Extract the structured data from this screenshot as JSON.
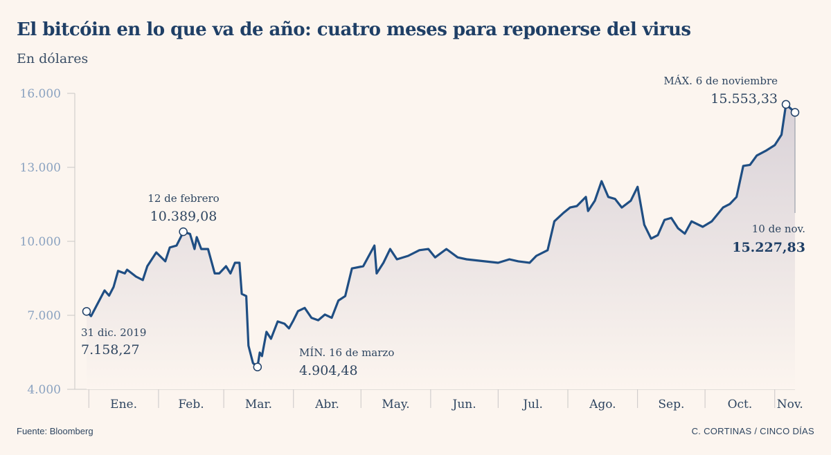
{
  "header": {
    "title": "El bitcóin en lo que va de año: cuatro meses para reponerse del virus",
    "subtitle": "En dólares"
  },
  "footer": {
    "source": "Fuente: Bloomberg",
    "credit": "C. CORTINAS / CINCO DÍAS"
  },
  "colors": {
    "line": "#1f4e83",
    "fill_top": "#d9d2d8",
    "background": "#fcf5ef",
    "axis_text": "#8aa2c0"
  },
  "chart_data": {
    "type": "area",
    "title": "El bitcóin en lo que va de año: cuatro meses para reponerse del virus",
    "ylabel": "En dólares",
    "ylim": [
      4000,
      16000
    ],
    "yticks": [
      {
        "value": 4000,
        "label": "4.000"
      },
      {
        "value": 7000,
        "label": "7.000"
      },
      {
        "value": 10000,
        "label": "10.000"
      },
      {
        "value": 13000,
        "label": "13.000"
      },
      {
        "value": 16000,
        "label": "16.000"
      }
    ],
    "xlim": [
      "2019-12-31",
      "2020-11-10"
    ],
    "months": [
      {
        "start": "2020-01-01",
        "label": "Ene."
      },
      {
        "start": "2020-02-01",
        "label": "Feb."
      },
      {
        "start": "2020-03-01",
        "label": "Mar."
      },
      {
        "start": "2020-04-01",
        "label": "Abr."
      },
      {
        "start": "2020-05-01",
        "label": "May."
      },
      {
        "start": "2020-06-01",
        "label": "Jun."
      },
      {
        "start": "2020-07-01",
        "label": "Jul."
      },
      {
        "start": "2020-08-01",
        "label": "Ago."
      },
      {
        "start": "2020-09-01",
        "label": "Sep."
      },
      {
        "start": "2020-10-01",
        "label": "Oct."
      },
      {
        "start": "2020-11-01",
        "label": "Nov."
      }
    ],
    "grid": false,
    "points": [
      [
        "2019-12-31",
        7158
      ],
      [
        "2020-01-02",
        6970
      ],
      [
        "2020-01-08",
        8010
      ],
      [
        "2020-01-10",
        7800
      ],
      [
        "2020-01-12",
        8150
      ],
      [
        "2020-01-14",
        8800
      ],
      [
        "2020-01-17",
        8700
      ],
      [
        "2020-01-18",
        8850
      ],
      [
        "2020-01-22",
        8570
      ],
      [
        "2020-01-25",
        8430
      ],
      [
        "2020-01-27",
        8990
      ],
      [
        "2020-01-31",
        9550
      ],
      [
        "2020-02-04",
        9190
      ],
      [
        "2020-02-06",
        9750
      ],
      [
        "2020-02-09",
        9830
      ],
      [
        "2020-02-11",
        10190
      ],
      [
        "2020-02-12",
        10389
      ],
      [
        "2020-02-15",
        10300
      ],
      [
        "2020-02-17",
        9690
      ],
      [
        "2020-02-18",
        10170
      ],
      [
        "2020-02-20",
        9690
      ],
      [
        "2020-02-23",
        9690
      ],
      [
        "2020-02-26",
        8700
      ],
      [
        "2020-02-28",
        8700
      ],
      [
        "2020-03-02",
        8990
      ],
      [
        "2020-03-04",
        8700
      ],
      [
        "2020-03-06",
        9130
      ],
      [
        "2020-03-08",
        9130
      ],
      [
        "2020-03-09",
        7870
      ],
      [
        "2020-03-11",
        7780
      ],
      [
        "2020-03-12",
        5770
      ],
      [
        "2020-03-14",
        5065
      ],
      [
        "2020-03-16",
        4904
      ],
      [
        "2020-03-17",
        5490
      ],
      [
        "2020-03-18",
        5350
      ],
      [
        "2020-03-20",
        6330
      ],
      [
        "2020-03-22",
        6050
      ],
      [
        "2020-03-25",
        6750
      ],
      [
        "2020-03-28",
        6660
      ],
      [
        "2020-03-30",
        6470
      ],
      [
        "2020-04-01",
        6800
      ],
      [
        "2020-04-03",
        7170
      ],
      [
        "2020-04-06",
        7300
      ],
      [
        "2020-04-09",
        6900
      ],
      [
        "2020-04-12",
        6800
      ],
      [
        "2020-04-15",
        7030
      ],
      [
        "2020-04-18",
        6900
      ],
      [
        "2020-04-21",
        7600
      ],
      [
        "2020-04-24",
        7780
      ],
      [
        "2020-04-27",
        8900
      ],
      [
        "2020-05-02",
        8990
      ],
      [
        "2020-05-07",
        9830
      ],
      [
        "2020-05-08",
        8700
      ],
      [
        "2020-05-11",
        9130
      ],
      [
        "2020-05-14",
        9690
      ],
      [
        "2020-05-17",
        9270
      ],
      [
        "2020-05-22",
        9410
      ],
      [
        "2020-05-27",
        9640
      ],
      [
        "2020-05-31",
        9690
      ],
      [
        "2020-06-03",
        9350
      ],
      [
        "2020-06-08",
        9690
      ],
      [
        "2020-06-13",
        9350
      ],
      [
        "2020-06-17",
        9270
      ],
      [
        "2020-06-25",
        9190
      ],
      [
        "2020-07-01",
        9130
      ],
      [
        "2020-07-06",
        9270
      ],
      [
        "2020-07-10",
        9190
      ],
      [
        "2020-07-15",
        9130
      ],
      [
        "2020-07-18",
        9410
      ],
      [
        "2020-07-23",
        9640
      ],
      [
        "2020-07-26",
        10810
      ],
      [
        "2020-07-30",
        11150
      ],
      [
        "2020-08-02",
        11370
      ],
      [
        "2020-08-05",
        11430
      ],
      [
        "2020-08-09",
        11800
      ],
      [
        "2020-08-10",
        11230
      ],
      [
        "2020-08-13",
        11650
      ],
      [
        "2020-08-16",
        12440
      ],
      [
        "2020-08-19",
        11800
      ],
      [
        "2020-08-22",
        11720
      ],
      [
        "2020-08-25",
        11370
      ],
      [
        "2020-08-29",
        11650
      ],
      [
        "2020-09-01",
        12210
      ],
      [
        "2020-09-04",
        10670
      ],
      [
        "2020-09-07",
        10110
      ],
      [
        "2020-09-10",
        10250
      ],
      [
        "2020-09-13",
        10870
      ],
      [
        "2020-09-16",
        10950
      ],
      [
        "2020-09-19",
        10530
      ],
      [
        "2020-09-22",
        10310
      ],
      [
        "2020-09-25",
        10810
      ],
      [
        "2020-09-30",
        10590
      ],
      [
        "2020-10-04",
        10810
      ],
      [
        "2020-10-09",
        11370
      ],
      [
        "2020-10-12",
        11510
      ],
      [
        "2020-10-15",
        11800
      ],
      [
        "2020-10-18",
        13060
      ],
      [
        "2020-10-21",
        13100
      ],
      [
        "2020-10-24",
        13480
      ],
      [
        "2020-10-28",
        13670
      ],
      [
        "2020-11-01",
        13900
      ],
      [
        "2020-11-04",
        14320
      ],
      [
        "2020-11-06",
        15553.33
      ],
      [
        "2020-11-10",
        15227.83
      ]
    ],
    "annotations": [
      {
        "date": "2019-12-31",
        "value": 7158.27,
        "label": "31 dic. 2019",
        "value_label": "7.158,27"
      },
      {
        "date": "2020-02-12",
        "value": 10389.08,
        "label": "12 de febrero",
        "value_label": "10.389,08"
      },
      {
        "date": "2020-03-16",
        "value": 4904.48,
        "label": "MÍN. 16 de marzo",
        "value_label": "4.904,48"
      },
      {
        "date": "2020-11-06",
        "value": 15553.33,
        "label": "MÁX. 6 de noviembre",
        "value_label": "15.553,33"
      },
      {
        "date": "2020-11-10",
        "value": 15227.83,
        "label": "10 de nov.",
        "value_label": "15.227,83"
      }
    ]
  }
}
